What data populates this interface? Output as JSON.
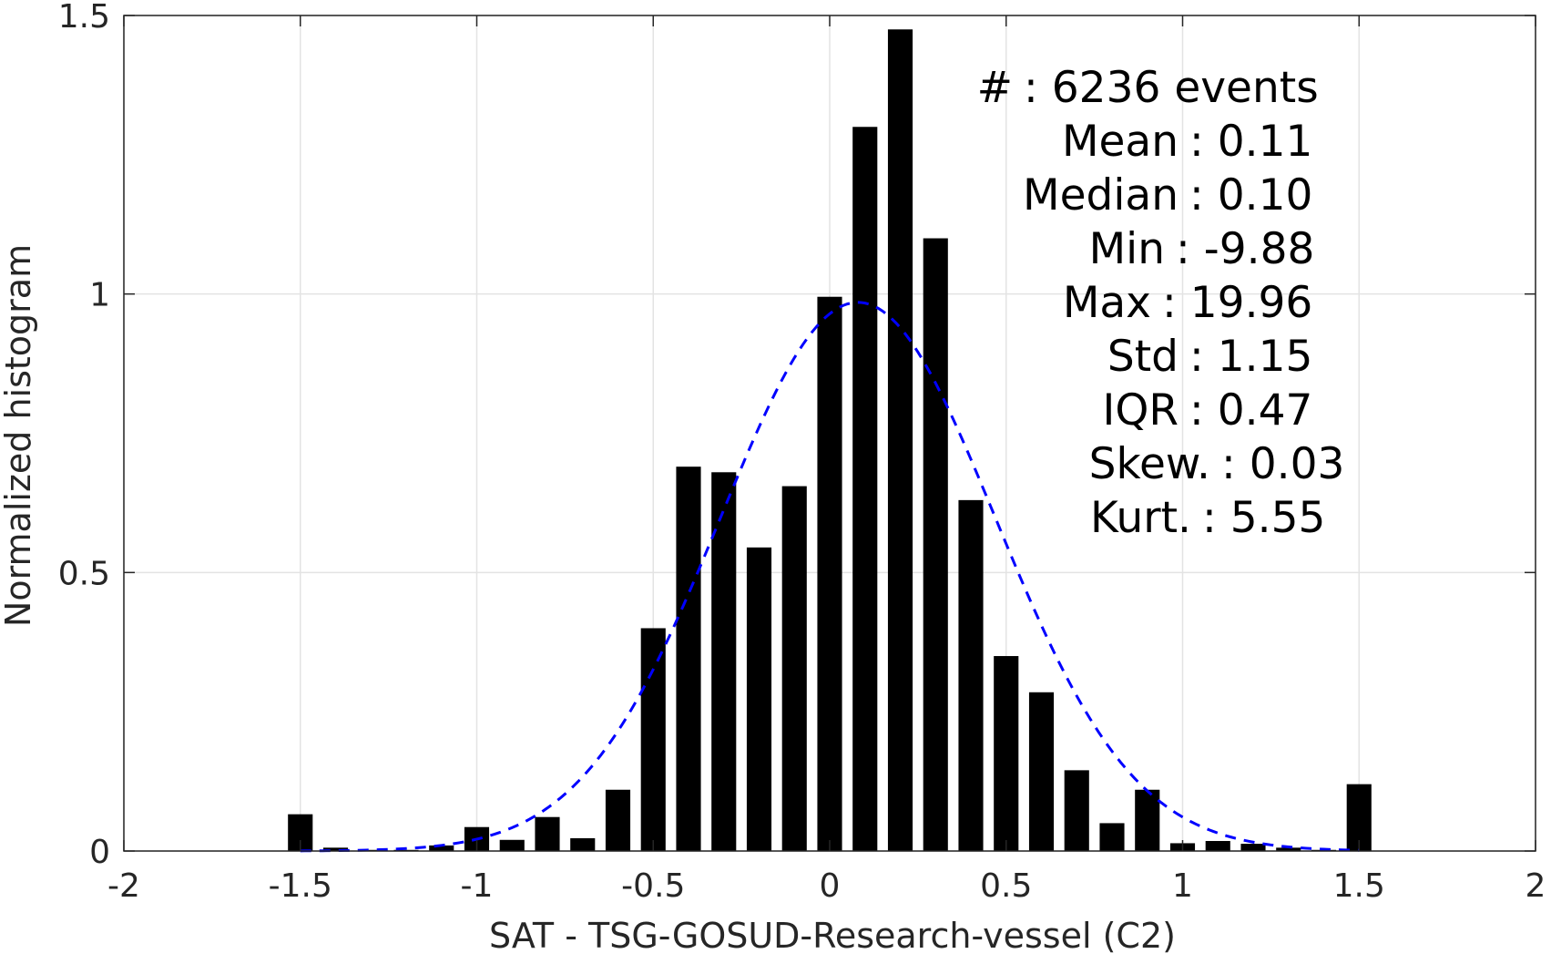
{
  "chart_data": {
    "type": "bar",
    "xlabel": "SAT - TSG-GOSUD-Research-vessel (C2)",
    "ylabel": "Normalized histogram",
    "xlim": [
      -2,
      2
    ],
    "ylim": [
      0,
      1.5
    ],
    "grid": true,
    "x_ticks": [
      -2,
      -1.5,
      -1,
      -0.5,
      0,
      0.5,
      1,
      1.5,
      2
    ],
    "x_tick_labels": [
      "-2",
      "-1.5",
      "-1",
      "-0.5",
      "0",
      "0.5",
      "1",
      "1.5",
      "2"
    ],
    "y_ticks": [
      0,
      0.5,
      1,
      1.5
    ],
    "y_tick_labels": [
      "0",
      "0.5",
      "1",
      "1.5"
    ],
    "bar_width": 0.07,
    "bar_color": "#000000",
    "bins": {
      "x": [
        -1.5,
        -1.4,
        -1.3,
        -1.2,
        -1.1,
        -1.0,
        -0.9,
        -0.8,
        -0.7,
        -0.6,
        -0.5,
        -0.4,
        -0.3,
        -0.2,
        -0.1,
        0.0,
        0.1,
        0.2,
        0.3,
        0.4,
        0.5,
        0.6,
        0.7,
        0.8,
        0.9,
        1.0,
        1.1,
        1.2,
        1.3,
        1.4,
        1.5
      ],
      "values": [
        0.066,
        0.006,
        0.002,
        0.002,
        0.01,
        0.043,
        0.02,
        0.061,
        0.023,
        0.11,
        0.4,
        0.69,
        0.68,
        0.545,
        0.655,
        0.995,
        1.3,
        1.475,
        1.1,
        0.63,
        0.35,
        0.285,
        0.145,
        0.05,
        0.11,
        0.014,
        0.018,
        0.013,
        0.006,
        0.002,
        0.12
      ]
    },
    "fit": {
      "type": "gaussian",
      "style": "dashed",
      "color": "#0000ff",
      "mean": 0.08,
      "sigma": 0.39,
      "peak": 0.985,
      "x_range": [
        -1.5,
        1.5
      ]
    },
    "stats_text": [
      {
        "label": "#",
        "value": ": 6236 events"
      },
      {
        "label": "Mean",
        "value": ": 0.11"
      },
      {
        "label": "Median",
        "value": ": 0.10"
      },
      {
        "label": "Min",
        "value": ": -9.88"
      },
      {
        "label": "Max",
        "value": ": 19.96"
      },
      {
        "label": "Std",
        "value": ": 1.15"
      },
      {
        "label": "IQR",
        "value": ": 0.47"
      },
      {
        "label": "Skew.",
        "value": ": 0.03"
      },
      {
        "label": "Kurt.",
        "value": ": 5.55"
      }
    ]
  }
}
